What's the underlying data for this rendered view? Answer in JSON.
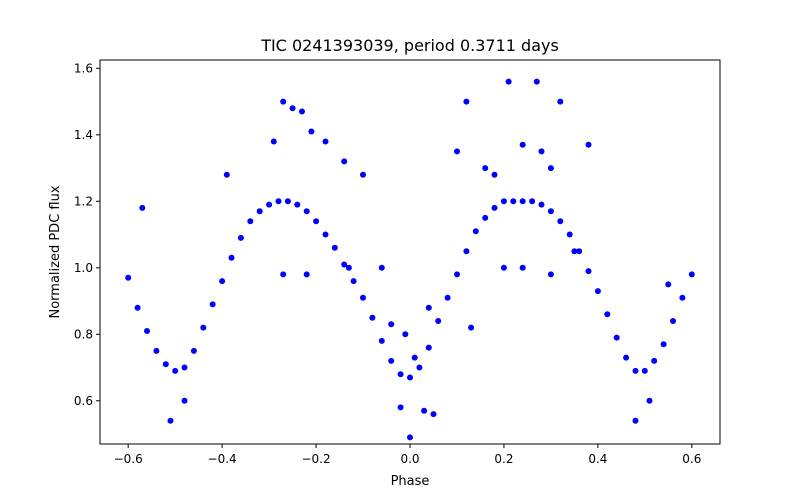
{
  "chart_data": {
    "type": "scatter",
    "title": "TIC 0241393039, period 0.3711 days",
    "xlabel": "Phase",
    "ylabel": "Normalized PDC flux",
    "xlim": [
      -0.66,
      0.66
    ],
    "ylim": [
      0.47,
      1.625
    ],
    "xticks": [
      -0.6,
      -0.4,
      -0.2,
      0.0,
      0.2,
      0.4,
      0.6
    ],
    "xtick_labels": [
      "−0.6",
      "−0.4",
      "−0.2",
      "0.0",
      "0.2",
      "0.4",
      "0.6"
    ],
    "yticks": [
      0.6,
      0.8,
      1.0,
      1.2,
      1.4,
      1.6
    ],
    "ytick_labels": [
      "0.6",
      "0.8",
      "1.0",
      "1.2",
      "1.4",
      "1.6"
    ],
    "grid": false,
    "marker_color": "#0000ff",
    "series": [
      {
        "x": [
          -0.6,
          -0.58,
          -0.56,
          -0.54,
          -0.52,
          -0.5,
          -0.48,
          -0.46,
          -0.44,
          -0.42,
          -0.4,
          -0.38,
          -0.36,
          -0.34,
          -0.32,
          -0.3,
          -0.28,
          -0.26,
          -0.24,
          -0.22,
          -0.2,
          -0.18,
          -0.16,
          -0.14,
          -0.12,
          -0.1,
          -0.08,
          -0.06,
          -0.04,
          -0.02,
          0.0,
          0.02,
          0.04,
          0.06,
          0.08,
          0.1,
          0.12,
          0.14,
          0.16,
          0.18,
          0.2,
          0.22,
          0.24,
          0.26,
          0.28,
          0.3,
          0.32,
          0.34,
          0.36,
          0.38,
          0.4,
          0.42,
          0.44,
          0.46,
          0.48,
          0.5,
          0.52,
          0.54,
          0.56,
          0.58,
          0.6
        ],
        "y": [
          0.97,
          0.88,
          0.81,
          0.75,
          0.71,
          0.69,
          0.7,
          0.75,
          0.82,
          0.89,
          0.96,
          1.03,
          1.09,
          1.14,
          1.17,
          1.19,
          1.2,
          1.2,
          1.19,
          1.17,
          1.14,
          1.1,
          1.06,
          1.01,
          0.96,
          0.91,
          0.85,
          0.78,
          0.72,
          0.68,
          0.67,
          0.7,
          0.76,
          0.84,
          0.91,
          0.98,
          1.05,
          1.11,
          1.15,
          1.18,
          1.2,
          1.2,
          1.2,
          1.2,
          1.19,
          1.17,
          1.14,
          1.1,
          1.05,
          0.99,
          0.93,
          0.86,
          0.79,
          0.73,
          0.69,
          0.69,
          0.72,
          0.77,
          0.84,
          0.91,
          0.98
        ]
      },
      {
        "x": [
          -0.57,
          -0.51,
          -0.48,
          -0.39,
          -0.29,
          -0.27,
          -0.25,
          -0.23,
          -0.21,
          -0.18,
          -0.14,
          -0.1,
          -0.06,
          -0.02,
          0.0,
          0.03,
          0.05,
          0.04,
          -0.01,
          0.1,
          0.12,
          0.16,
          0.18,
          0.21,
          0.24,
          0.27,
          0.28,
          0.3,
          0.32,
          0.38,
          0.3,
          0.13,
          -0.22,
          -0.27,
          0.48,
          0.51,
          0.55,
          0.2,
          0.24,
          0.35,
          -0.13,
          -0.04,
          0.01
        ],
        "y": [
          1.18,
          0.54,
          0.6,
          1.28,
          1.38,
          1.5,
          1.48,
          1.47,
          1.41,
          1.38,
          1.32,
          1.28,
          1.0,
          0.58,
          0.49,
          0.57,
          0.56,
          0.88,
          0.8,
          1.35,
          1.5,
          1.3,
          1.28,
          1.56,
          1.37,
          1.56,
          1.35,
          1.3,
          1.5,
          1.37,
          0.98,
          0.82,
          0.98,
          0.98,
          0.54,
          0.6,
          0.95,
          1.0,
          1.0,
          1.05,
          1.0,
          0.83,
          0.73
        ]
      }
    ]
  }
}
